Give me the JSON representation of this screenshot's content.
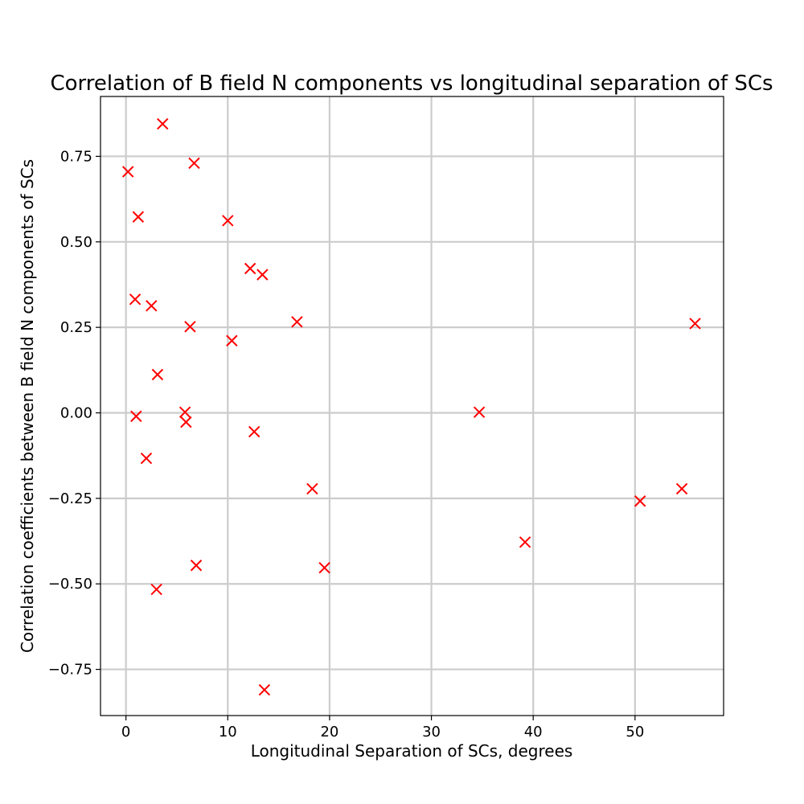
{
  "chart_data": {
    "type": "scatter",
    "title": "Correlation of B field N components vs longitudinal separation of SCs",
    "xlabel": "Longitudinal Separation of SCs, degrees",
    "ylabel": "Correlation coefficients between B field N components of SCs",
    "xlim": [
      -2.5,
      58.7
    ],
    "ylim": [
      -0.885,
      0.925
    ],
    "x_ticks": [
      0,
      10,
      20,
      30,
      40,
      50
    ],
    "x_tick_labels": [
      "0",
      "10",
      "20",
      "30",
      "40",
      "50"
    ],
    "y_ticks": [
      -0.75,
      -0.5,
      -0.25,
      0.0,
      0.25,
      0.5,
      0.75
    ],
    "y_tick_labels": [
      "−0.75",
      "−0.50",
      "−0.25",
      "0.00",
      "0.25",
      "0.50",
      "0.75"
    ],
    "grid": true,
    "marker": "x",
    "marker_color": "#ff0000",
    "x": [
      3.6,
      0.2,
      6.7,
      1.2,
      10.0,
      12.2,
      13.4,
      0.9,
      2.5,
      6.3,
      16.8,
      10.4,
      55.9,
      3.1,
      5.8,
      1.0,
      5.9,
      34.7,
      12.6,
      2.0,
      18.3,
      54.6,
      50.5,
      39.2,
      6.9,
      19.5,
      3.0,
      13.6
    ],
    "y": [
      0.845,
      0.705,
      0.73,
      0.573,
      0.562,
      0.422,
      0.404,
      0.332,
      0.313,
      0.252,
      0.266,
      0.211,
      0.261,
      0.112,
      0.002,
      -0.01,
      -0.027,
      0.002,
      -0.055,
      -0.133,
      -0.222,
      -0.222,
      -0.258,
      -0.378,
      -0.446,
      -0.453,
      -0.516,
      -0.81
    ]
  }
}
